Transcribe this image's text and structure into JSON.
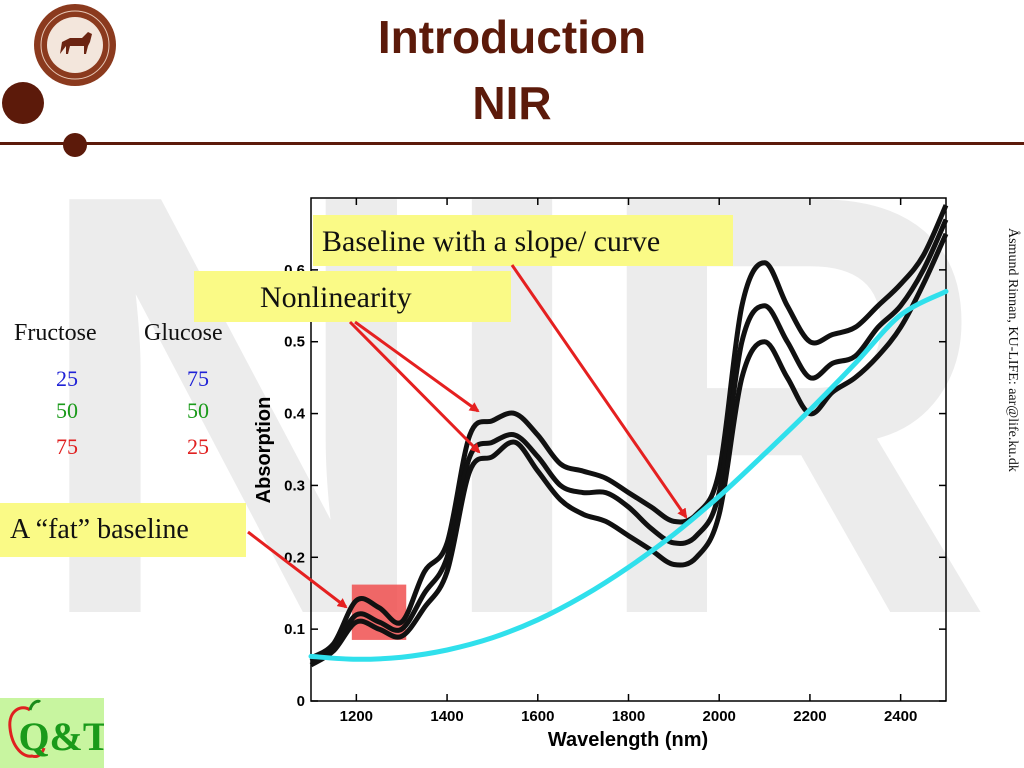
{
  "slide": {
    "title_line1": "Introduction",
    "title_line2": "NIR",
    "watermark": "NIR",
    "side_credit": "Åsmund Rinnan, KU-LIFE: aar@life.ku.dk",
    "logo_text": "Q&T"
  },
  "table": {
    "headers": [
      "Fructose",
      "Glucose"
    ],
    "rows": [
      {
        "fructose": "25",
        "glucose": "75",
        "color": "#1f22d6"
      },
      {
        "fructose": "50",
        "glucose": "50",
        "color": "#1a9a1a"
      },
      {
        "fructose": "75",
        "glucose": "25",
        "color": "#e02020"
      }
    ]
  },
  "annotations": {
    "fat_baseline": "A “fat” baseline",
    "nonlinearity": "Nonlinearity",
    "baseline_slope": "Baseline with a slope/ curve"
  },
  "colors": {
    "brand": "#5c1a0a",
    "note_bg": "#fafa86",
    "arrow": "#e52020",
    "baseline_fit": "#30e0ec",
    "spectra": "#111111",
    "highlight": "#f05050"
  },
  "chart_data": {
    "type": "line",
    "xlabel": "Wavelength (nm)",
    "ylabel": "Absorption",
    "xlim": [
      1100,
      2500
    ],
    "ylim": [
      0,
      0.7
    ],
    "xticks": [
      1200,
      1400,
      1600,
      1800,
      2000,
      2200,
      2400
    ],
    "yticks": [
      0,
      0.1,
      0.2,
      0.3,
      0.4,
      0.5,
      0.6
    ],
    "ytick_labels": [
      "0",
      "0.1",
      "0.2",
      "0.3",
      "0.4",
      "0.5",
      "0.6"
    ],
    "grid": false,
    "x": [
      1100,
      1150,
      1200,
      1250,
      1300,
      1350,
      1400,
      1450,
      1500,
      1550,
      1600,
      1650,
      1700,
      1750,
      1800,
      1850,
      1900,
      1950,
      2000,
      2050,
      2100,
      2150,
      2200,
      2250,
      2300,
      2350,
      2400,
      2450,
      2500
    ],
    "series": [
      {
        "values": [
          0.06,
          0.08,
          0.14,
          0.13,
          0.11,
          0.18,
          0.22,
          0.37,
          0.39,
          0.4,
          0.37,
          0.33,
          0.32,
          0.31,
          0.29,
          0.27,
          0.25,
          0.26,
          0.32,
          0.55,
          0.61,
          0.55,
          0.5,
          0.51,
          0.52,
          0.55,
          0.58,
          0.62,
          0.69
        ]
      },
      {
        "values": [
          0.055,
          0.075,
          0.12,
          0.11,
          0.1,
          0.15,
          0.2,
          0.34,
          0.36,
          0.37,
          0.34,
          0.3,
          0.29,
          0.29,
          0.27,
          0.24,
          0.22,
          0.23,
          0.29,
          0.5,
          0.55,
          0.5,
          0.45,
          0.47,
          0.48,
          0.52,
          0.55,
          0.6,
          0.67
        ]
      },
      {
        "values": [
          0.05,
          0.07,
          0.11,
          0.1,
          0.09,
          0.13,
          0.18,
          0.32,
          0.34,
          0.36,
          0.32,
          0.28,
          0.26,
          0.25,
          0.23,
          0.21,
          0.19,
          0.2,
          0.26,
          0.45,
          0.5,
          0.45,
          0.4,
          0.43,
          0.45,
          0.48,
          0.52,
          0.58,
          0.65
        ]
      }
    ],
    "baseline_fit": {
      "x": [
        1100,
        1200,
        1300,
        1400,
        1500,
        1600,
        1700,
        1800,
        1900,
        2000,
        2100,
        2200,
        2300,
        2400,
        2500
      ],
      "values": [
        0.062,
        0.058,
        0.061,
        0.071,
        0.088,
        0.113,
        0.146,
        0.186,
        0.232,
        0.285,
        0.344,
        0.405,
        0.47,
        0.537,
        0.57
      ]
    },
    "highlight_region": {
      "x": [
        1190,
        1310
      ],
      "y": [
        0.085,
        0.162
      ]
    }
  }
}
